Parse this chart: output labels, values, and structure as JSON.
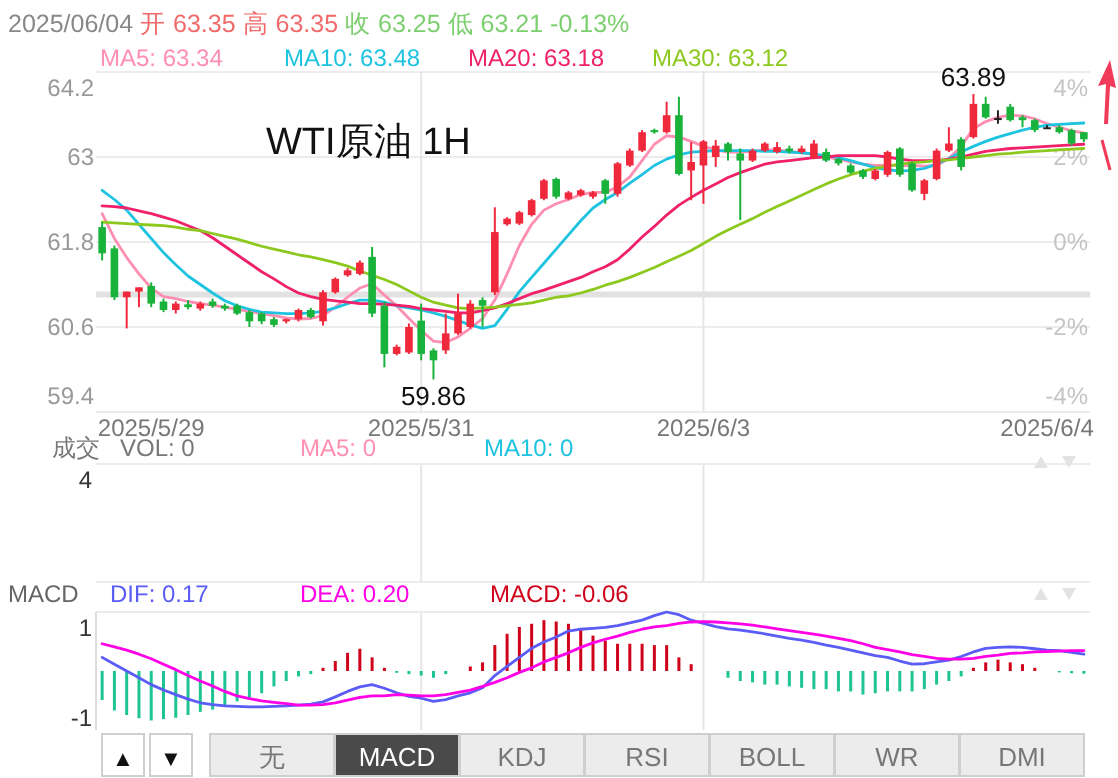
{
  "chart_data": [
    {
      "type": "candlestick",
      "title": "WTI原油 1H",
      "legend": "top",
      "grid": true,
      "annotations": [
        "2025/06/04",
        "开 63.35",
        "高 63.35",
        "收 63.25",
        "低 63.21",
        "-0.13%",
        {
          "text": "59.86",
          "y": 59.86
        },
        {
          "text": "63.89",
          "y": 63.89
        }
      ],
      "categories": [
        null,
        null,
        null,
        null,
        "2025/5/29",
        null,
        null,
        null,
        null,
        null,
        null,
        null,
        null,
        null,
        null,
        null,
        null,
        null,
        null,
        null,
        null,
        null,
        null,
        null,
        null,
        null,
        "2025/5/31",
        null,
        null,
        null,
        null,
        null,
        null,
        null,
        null,
        null,
        null,
        null,
        null,
        null,
        null,
        null,
        null,
        null,
        null,
        null,
        null,
        null,
        null,
        "2025/6/3",
        null,
        null,
        null,
        null,
        null,
        null,
        null,
        null,
        null,
        null,
        null,
        null,
        null,
        null,
        null,
        null,
        null,
        null,
        null,
        null,
        null,
        null,
        null,
        null,
        null,
        null,
        null,
        "2025/6/4",
        null,
        null,
        null
      ],
      "ohlc": [
        [
          62.01,
          62.08,
          61.54,
          61.64
        ],
        [
          61.71,
          61.75,
          60.98,
          61.02
        ],
        [
          61.02,
          61.1,
          60.58,
          61.1
        ],
        [
          61.1,
          61.16,
          60.88,
          61.16
        ],
        [
          61.18,
          61.23,
          60.88,
          60.93
        ],
        [
          60.96,
          61.0,
          60.81,
          60.84
        ],
        [
          60.84,
          60.96,
          60.79,
          60.93
        ],
        [
          60.92,
          60.98,
          60.85,
          60.88
        ],
        [
          60.86,
          60.96,
          60.83,
          60.93
        ],
        [
          60.96,
          61.0,
          60.87,
          60.9
        ],
        [
          60.9,
          60.93,
          60.83,
          60.86
        ],
        [
          60.9,
          60.93,
          60.77,
          60.79
        ],
        [
          60.81,
          60.84,
          60.6,
          60.68
        ],
        [
          60.79,
          60.81,
          60.64,
          60.68
        ],
        [
          60.71,
          60.74,
          60.6,
          60.63
        ],
        [
          60.68,
          60.72,
          60.65,
          60.71
        ],
        [
          60.71,
          60.86,
          60.68,
          60.84
        ],
        [
          60.84,
          60.87,
          60.72,
          60.74
        ],
        [
          60.68,
          61.12,
          60.62,
          61.09
        ],
        [
          61.09,
          61.3,
          61.07,
          61.28
        ],
        [
          61.33,
          61.43,
          61.31,
          61.4
        ],
        [
          61.35,
          61.54,
          61.33,
          61.51
        ],
        [
          61.59,
          61.73,
          60.74,
          60.79
        ],
        [
          60.9,
          60.96,
          60.03,
          60.22
        ],
        [
          60.22,
          60.35,
          60.2,
          60.32
        ],
        [
          60.24,
          60.65,
          60.22,
          60.6
        ],
        [
          60.69,
          60.93,
          60.13,
          60.22
        ],
        [
          60.27,
          60.3,
          59.86,
          60.13
        ],
        [
          60.27,
          60.79,
          60.22,
          60.51
        ],
        [
          60.51,
          61.07,
          60.49,
          60.79
        ],
        [
          60.6,
          60.98,
          60.58,
          60.93
        ],
        [
          60.98,
          61.02,
          60.6,
          60.9
        ],
        [
          61.09,
          62.29,
          61.05,
          61.94
        ],
        [
          62.05,
          62.15,
          62.03,
          62.13
        ],
        [
          62.06,
          62.24,
          62.04,
          62.22
        ],
        [
          62.18,
          62.41,
          62.16,
          62.39
        ],
        [
          62.41,
          62.69,
          62.39,
          62.67
        ],
        [
          62.69,
          62.71,
          62.41,
          62.44
        ],
        [
          62.41,
          62.52,
          62.39,
          62.5
        ],
        [
          62.46,
          62.55,
          62.44,
          62.53
        ],
        [
          62.44,
          62.52,
          62.41,
          62.5
        ],
        [
          62.67,
          62.69,
          62.34,
          62.48
        ],
        [
          62.48,
          62.93,
          62.44,
          62.91
        ],
        [
          62.88,
          63.12,
          62.86,
          63.09
        ],
        [
          63.09,
          63.38,
          63.07,
          63.35
        ],
        [
          63.38,
          63.4,
          63.33,
          63.35
        ],
        [
          63.35,
          63.78,
          63.33,
          63.59
        ],
        [
          63.59,
          63.85,
          62.74,
          62.76
        ],
        [
          62.81,
          63.21,
          62.39,
          62.93
        ],
        [
          62.88,
          63.24,
          62.34,
          63.22
        ],
        [
          63.0,
          63.24,
          62.86,
          63.16
        ],
        [
          63.19,
          63.21,
          62.95,
          63.07
        ],
        [
          63.05,
          63.12,
          62.11,
          62.95
        ],
        [
          62.95,
          63.12,
          62.93,
          63.09
        ],
        [
          63.09,
          63.21,
          63.07,
          63.19
        ],
        [
          63.07,
          63.21,
          63.05,
          63.14
        ],
        [
          63.12,
          63.16,
          63.05,
          63.08
        ],
        [
          63.07,
          63.16,
          63.05,
          63.12
        ],
        [
          62.99,
          63.24,
          62.97,
          63.19
        ],
        [
          63.07,
          63.12,
          62.93,
          62.95
        ],
        [
          62.97,
          62.99,
          62.88,
          62.91
        ],
        [
          62.88,
          62.91,
          62.76,
          62.78
        ],
        [
          62.81,
          62.83,
          62.69,
          62.72
        ],
        [
          62.69,
          62.83,
          62.67,
          62.81
        ],
        [
          62.75,
          63.09,
          62.72,
          63.07
        ],
        [
          63.12,
          63.14,
          62.72,
          62.75
        ],
        [
          62.91,
          62.93,
          62.51,
          62.53
        ],
        [
          62.48,
          62.69,
          62.39,
          62.67
        ],
        [
          62.69,
          63.12,
          62.67,
          63.09
        ],
        [
          63.09,
          63.42,
          63.07,
          63.19
        ],
        [
          63.25,
          63.28,
          62.81,
          62.86
        ],
        [
          63.28,
          63.89,
          63.26,
          63.75
        ],
        [
          63.75,
          63.85,
          63.54,
          63.56
        ],
        [
          63.55,
          63.66,
          63.47,
          63.55
        ],
        [
          63.71,
          63.75,
          63.5,
          63.52
        ],
        [
          63.56,
          63.59,
          63.42,
          63.52
        ],
        [
          63.52,
          63.54,
          63.35,
          63.38
        ],
        [
          63.42,
          63.45,
          63.4,
          63.42
        ],
        [
          63.42,
          63.45,
          63.33,
          63.35
        ],
        [
          63.38,
          63.4,
          63.16,
          63.19
        ],
        [
          63.35,
          63.35,
          63.21,
          63.25
        ]
      ],
      "colors": [
        "#19b23b",
        "#19b23b",
        "#f0283c",
        "#f0283c",
        "#19b23b",
        "#19b23b",
        "#f0283c",
        "#19b23b",
        "#f0283c",
        "#19b23b",
        "#19b23b",
        "#19b23b",
        "#19b23b",
        "#19b23b",
        "#19b23b",
        "#f0283c",
        "#f0283c",
        "#19b23b",
        "#f0283c",
        "#f0283c",
        "#f0283c",
        "#f0283c",
        "#19b23b",
        "#19b23b",
        "#f0283c",
        "#f0283c",
        "#19b23b",
        "#19b23b",
        "#f0283c",
        "#f0283c",
        "#f0283c",
        "#19b23b",
        "#f0283c",
        "#f0283c",
        "#f0283c",
        "#f0283c",
        "#f0283c",
        "#19b23b",
        "#f0283c",
        "#f0283c",
        "#f0283c",
        "#19b23b",
        "#f0283c",
        "#f0283c",
        "#f0283c",
        "#19b23b",
        "#f0283c",
        "#19b23b",
        "#f0283c",
        "#f0283c",
        "#f0283c",
        "#19b23b",
        "#19b23b",
        "#f0283c",
        "#f0283c",
        "#f0283c",
        "#19b23b",
        "#f0283c",
        "#f0283c",
        "#19b23b",
        "#19b23b",
        "#19b23b",
        "#19b23b",
        "#f0283c",
        "#f0283c",
        "#19b23b",
        "#19b23b",
        "#f0283c",
        "#f0283c",
        "#f0283c",
        "#19b23b",
        "#f0283c",
        "#19b23b",
        "#222222",
        "#19b23b",
        "#19b23b",
        "#19b23b",
        "#222222",
        "#19b23b",
        "#19b23b",
        "#19b23b"
      ],
      "series": [
        {
          "name": "MA5: 63.34",
          "type": "line",
          "color": "#ff8fb1",
          "values": [
            62.2,
            61.85,
            61.58,
            61.35,
            61.15,
            61.03,
            61.0,
            60.96,
            60.93,
            60.91,
            60.88,
            60.85,
            60.82,
            60.79,
            60.76,
            60.73,
            60.71,
            60.72,
            60.76,
            60.88,
            61.02,
            61.15,
            61.21,
            61.05,
            60.9,
            60.72,
            60.55,
            60.4,
            60.38,
            60.46,
            60.58,
            60.72,
            60.98,
            61.35,
            61.75,
            62.05,
            62.25,
            62.34,
            62.4,
            62.47,
            62.5,
            62.5,
            62.58,
            62.72,
            62.95,
            63.18,
            63.3,
            63.28,
            63.22,
            63.15,
            63.1,
            63.07,
            63.07,
            63.08,
            63.1,
            63.1,
            63.08,
            63.06,
            63.04,
            63.0,
            62.97,
            62.93,
            62.9,
            62.88,
            62.88,
            62.88,
            62.88,
            62.87,
            62.88,
            62.98,
            63.15,
            63.4,
            63.5,
            63.56,
            63.59,
            63.58,
            63.54,
            63.47,
            63.42,
            63.37,
            63.34
          ]
        },
        {
          "name": "MA10: 63.48",
          "type": "line",
          "color": "#1ec3e0",
          "values": [
            62.53,
            62.4,
            62.25,
            62.05,
            61.85,
            61.65,
            61.48,
            61.32,
            61.2,
            61.08,
            60.97,
            60.9,
            60.85,
            60.81,
            60.8,
            60.79,
            60.79,
            60.8,
            60.82,
            60.87,
            60.93,
            60.98,
            60.98,
            60.95,
            60.9,
            60.87,
            60.84,
            60.8,
            60.75,
            60.69,
            60.63,
            60.58,
            60.62,
            60.85,
            61.1,
            61.3,
            61.5,
            61.7,
            61.9,
            62.1,
            62.28,
            62.4,
            62.5,
            62.63,
            62.75,
            62.88,
            62.97,
            63.03,
            63.07,
            63.08,
            63.09,
            63.09,
            63.09,
            63.09,
            63.08,
            63.08,
            63.07,
            63.06,
            63.04,
            63.02,
            62.99,
            62.95,
            62.9,
            62.85,
            62.82,
            62.8,
            62.81,
            62.84,
            62.9,
            62.98,
            63.07,
            63.15,
            63.22,
            63.28,
            63.33,
            63.38,
            63.42,
            63.45,
            63.46,
            63.47,
            63.48
          ]
        },
        {
          "name": "MA20: 63.18",
          "type": "line",
          "color": "#f0206a",
          "values": [
            62.31,
            62.3,
            62.28,
            62.24,
            62.2,
            62.15,
            62.1,
            62.03,
            61.96,
            61.86,
            61.74,
            61.62,
            61.5,
            61.38,
            61.28,
            61.17,
            61.08,
            61.03,
            60.99,
            60.97,
            60.95,
            60.93,
            60.93,
            60.92,
            60.91,
            60.89,
            60.86,
            60.84,
            60.82,
            60.8,
            60.8,
            60.83,
            60.87,
            60.93,
            61.0,
            61.07,
            61.12,
            61.18,
            61.24,
            61.3,
            61.38,
            61.45,
            61.55,
            61.7,
            61.87,
            62.02,
            62.18,
            62.32,
            62.43,
            62.53,
            62.62,
            62.71,
            62.78,
            62.84,
            62.9,
            62.93,
            62.95,
            62.97,
            62.99,
            63.0,
            63.02,
            63.02,
            63.02,
            63.02,
            63.0,
            62.97,
            62.95,
            62.95,
            62.95,
            62.97,
            63.0,
            63.04,
            63.08,
            63.1,
            63.12,
            63.13,
            63.14,
            63.15,
            63.16,
            63.17,
            63.18
          ]
        },
        {
          "name": "MA30: 63.12",
          "type": "line",
          "color": "#8cc81e",
          "values": [
            62.08,
            62.07,
            62.06,
            62.05,
            62.04,
            62.03,
            62.01,
            61.98,
            61.96,
            61.92,
            61.88,
            61.84,
            61.79,
            61.74,
            61.7,
            61.66,
            61.62,
            61.59,
            61.55,
            61.51,
            61.46,
            61.39,
            61.33,
            61.27,
            61.2,
            61.11,
            61.02,
            60.95,
            60.91,
            60.87,
            60.86,
            60.87,
            60.88,
            60.9,
            60.92,
            60.94,
            60.98,
            61.02,
            61.04,
            61.08,
            61.13,
            61.19,
            61.24,
            61.3,
            61.37,
            61.44,
            61.52,
            61.6,
            61.68,
            61.78,
            61.88,
            61.97,
            62.05,
            62.13,
            62.22,
            62.3,
            62.38,
            62.46,
            62.54,
            62.62,
            62.69,
            62.75,
            62.8,
            62.84,
            62.87,
            62.9,
            62.92,
            62.93,
            62.95,
            62.96,
            62.98,
            63.0,
            63.02,
            63.04,
            63.05,
            63.07,
            63.08,
            63.09,
            63.1,
            63.11,
            63.12
          ]
        }
      ],
      "ylim": [
        59.4,
        64.2
      ],
      "yticks": [
        59.4,
        60.6,
        61.8,
        63,
        64.2
      ],
      "y2lim": [
        -4,
        4
      ],
      "y2ticks": [
        {
          "value": -4,
          "label": "-4%"
        },
        {
          "value": -2,
          "label": "-2%"
        },
        {
          "value": 0,
          "label": "0%"
        },
        {
          "value": 2,
          "label": "2%"
        },
        {
          "value": 4,
          "label": "4%"
        }
      ],
      "ref_lines": [
        {
          "axis": "y",
          "value": 61.06,
          "color": "#e2e2e2"
        }
      ]
    },
    {
      "type": "other",
      "annotations": [
        "成交",
        "VOL: 0",
        "MA5: 0",
        "MA10: 0",
        "4"
      ]
    },
    {
      "type": "bar",
      "title": "MACD",
      "legend": "top",
      "ylim": [
        -1.3,
        1.3
      ],
      "yticks": [
        -1,
        1
      ],
      "categories": [
        null,
        null,
        null,
        null,
        null,
        null,
        null,
        null,
        null,
        null,
        null,
        null,
        null,
        null,
        null,
        null,
        null,
        null,
        null,
        null,
        null,
        null,
        null,
        null,
        null,
        null,
        null,
        null,
        null,
        null,
        null,
        null,
        null,
        null,
        null,
        null,
        null,
        null,
        null,
        null,
        null,
        null,
        null,
        null,
        null,
        null,
        null,
        null,
        null,
        null,
        null,
        null,
        null,
        null,
        null,
        null,
        null,
        null,
        null,
        null,
        null,
        null,
        null,
        null,
        null,
        null,
        null,
        null,
        null,
        null,
        null,
        null,
        null,
        null,
        null,
        null,
        null,
        null,
        null,
        null,
        null
      ],
      "series": [
        {
          "name": "DIF: 0.17",
          "type": "line",
          "color": "#5b5bf5",
          "values": [
            0.3,
            0.15,
            0.0,
            -0.15,
            -0.3,
            -0.42,
            -0.52,
            -0.62,
            -0.7,
            -0.74,
            -0.77,
            -0.78,
            -0.79,
            -0.79,
            -0.78,
            -0.77,
            -0.75,
            -0.73,
            -0.68,
            -0.57,
            -0.45,
            -0.35,
            -0.3,
            -0.38,
            -0.48,
            -0.56,
            -0.6,
            -0.67,
            -0.63,
            -0.55,
            -0.48,
            -0.37,
            -0.1,
            0.1,
            0.3,
            0.5,
            0.64,
            0.75,
            0.88,
            0.92,
            0.94,
            0.96,
            1.0,
            1.06,
            1.12,
            1.22,
            1.3,
            1.24,
            1.12,
            1.05,
            0.98,
            0.93,
            0.9,
            0.86,
            0.82,
            0.77,
            0.72,
            0.68,
            0.63,
            0.57,
            0.52,
            0.46,
            0.4,
            0.34,
            0.3,
            0.22,
            0.15,
            0.16,
            0.2,
            0.24,
            0.32,
            0.42,
            0.5,
            0.52,
            0.53,
            0.52,
            0.49,
            0.46,
            0.45,
            0.41,
            0.37
          ]
        },
        {
          "name": "DEA: 0.20",
          "type": "line",
          "color": "#ff00e6",
          "values": [
            0.6,
            0.53,
            0.46,
            0.37,
            0.27,
            0.15,
            0.03,
            -0.1,
            -0.22,
            -0.33,
            -0.45,
            -0.55,
            -0.61,
            -0.66,
            -0.69,
            -0.72,
            -0.75,
            -0.75,
            -0.74,
            -0.7,
            -0.64,
            -0.58,
            -0.55,
            -0.55,
            -0.52,
            -0.53,
            -0.55,
            -0.55,
            -0.52,
            -0.47,
            -0.42,
            -0.34,
            -0.25,
            -0.15,
            -0.03,
            0.07,
            0.2,
            0.3,
            0.4,
            0.52,
            0.62,
            0.7,
            0.77,
            0.85,
            0.92,
            0.97,
            1.0,
            1.05,
            1.08,
            1.09,
            1.08,
            1.06,
            1.04,
            1.01,
            0.97,
            0.93,
            0.89,
            0.85,
            0.81,
            0.77,
            0.72,
            0.67,
            0.6,
            0.52,
            0.47,
            0.42,
            0.36,
            0.32,
            0.28,
            0.26,
            0.26,
            0.28,
            0.32,
            0.35,
            0.39,
            0.4,
            0.42,
            0.43,
            0.44,
            0.45,
            0.45
          ]
        },
        {
          "name": "MACD: -0.06",
          "type": "bar",
          "color": "#d0021b",
          "values": [
            -0.64,
            -0.87,
            -0.97,
            -1.04,
            -1.09,
            -1.06,
            -1.03,
            -0.97,
            -0.9,
            -0.85,
            -0.75,
            -0.67,
            -0.6,
            -0.49,
            -0.34,
            -0.22,
            -0.12,
            -0.07,
            0.07,
            0.22,
            0.4,
            0.49,
            0.3,
            0.07,
            -0.04,
            -0.07,
            -0.1,
            -0.15,
            -0.07,
            null,
            0.1,
            0.19,
            0.57,
            0.82,
            0.97,
            1.04,
            1.12,
            1.09,
            1.04,
            0.9,
            0.78,
            0.67,
            0.6,
            0.6,
            0.6,
            0.57,
            0.57,
            0.3,
            0.15,
            null,
            null,
            -0.15,
            -0.22,
            -0.25,
            -0.3,
            -0.3,
            -0.34,
            -0.37,
            -0.4,
            -0.4,
            -0.45,
            -0.45,
            -0.52,
            -0.49,
            -0.45,
            -0.45,
            -0.45,
            -0.4,
            -0.3,
            -0.22,
            -0.12,
            0.07,
            0.19,
            0.25,
            0.19,
            0.15,
            0.07,
            null,
            -0.03,
            -0.05,
            -0.06
          ],
          "colors": [
            "#1fc493",
            "#1fc493",
            "#1fc493",
            "#1fc493",
            "#1fc493",
            "#1fc493",
            "#1fc493",
            "#1fc493",
            "#1fc493",
            "#1fc493",
            "#1fc493",
            "#1fc493",
            "#1fc493",
            "#1fc493",
            "#1fc493",
            "#1fc493",
            "#1fc493",
            "#1fc493",
            "#d0021b",
            "#d0021b",
            "#d0021b",
            "#d0021b",
            "#d0021b",
            "#d0021b",
            "#1fc493",
            "#1fc493",
            "#1fc493",
            "#1fc493",
            "#1fc493",
            null,
            "#d0021b",
            "#d0021b",
            "#d0021b",
            "#d0021b",
            "#d0021b",
            "#d0021b",
            "#d0021b",
            "#d0021b",
            "#d0021b",
            "#d0021b",
            "#d0021b",
            "#d0021b",
            "#d0021b",
            "#d0021b",
            "#d0021b",
            "#d0021b",
            "#d0021b",
            "#d0021b",
            "#d0021b",
            null,
            null,
            "#1fc493",
            "#1fc493",
            "#1fc493",
            "#1fc493",
            "#1fc493",
            "#1fc493",
            "#1fc493",
            "#1fc493",
            "#1fc493",
            "#1fc493",
            "#1fc493",
            "#1fc493",
            "#1fc493",
            "#1fc493",
            "#1fc493",
            "#1fc493",
            "#1fc493",
            "#1fc493",
            "#1fc493",
            "#1fc493",
            "#d0021b",
            "#d0021b",
            "#d0021b",
            "#d0021b",
            "#d0021b",
            "#d0021b",
            null,
            "#1fc493",
            "#1fc493",
            "#1fc493"
          ]
        }
      ]
    },
    {
      "type": "other",
      "annotations": [
        "▲",
        "▼",
        "无",
        "MACD",
        "KDJ",
        "RSI",
        "BOLL",
        "WR",
        "DMI"
      ]
    }
  ]
}
